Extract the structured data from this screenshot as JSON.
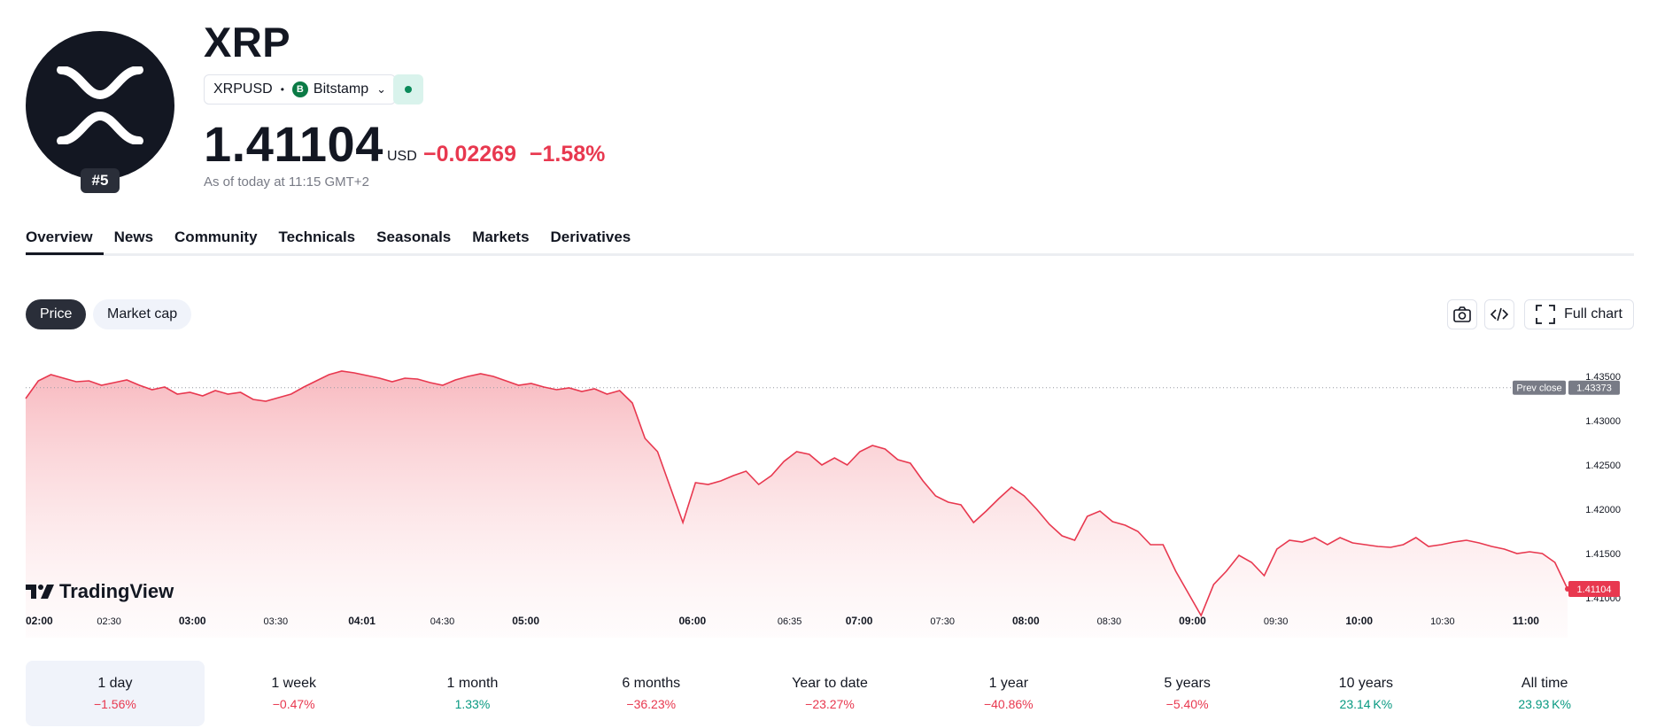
{
  "header": {
    "title": "XRP",
    "rank": "#5",
    "symbol": "XRPUSD",
    "exchange_icon": "B",
    "exchange": "Bitstamp",
    "price": "1.41104",
    "currency": "USD",
    "change": "−0.02269",
    "change_percent": "−1.58%",
    "as_of": "As of today at 11:15 GMT+2"
  },
  "tabs": [
    {
      "label": "Overview"
    },
    {
      "label": "News"
    },
    {
      "label": "Community"
    },
    {
      "label": "Technicals"
    },
    {
      "label": "Seasonals"
    },
    {
      "label": "Markets"
    },
    {
      "label": "Derivatives"
    }
  ],
  "chart_toggle": {
    "price": "Price",
    "market_cap": "Market cap"
  },
  "toolbar": {
    "full_chart": "Full chart"
  },
  "brand": {
    "tradingview": "TradingView"
  },
  "colors": {
    "negative": "#e8384f",
    "positive": "#089981",
    "dark": "#131722"
  },
  "chart_data": {
    "type": "area",
    "x_ticks": [
      "02:00",
      "02:30",
      "03:00",
      "03:30",
      "04:01",
      "04:30",
      "05:00",
      "06:00",
      "06:35",
      "07:00",
      "07:30",
      "08:00",
      "08:30",
      "09:00",
      "09:30",
      "10:00",
      "10:30",
      "11:00"
    ],
    "y_ticks": [
      "1.43500",
      "1.43000",
      "1.42500",
      "1.42000",
      "1.41500",
      "1.41000"
    ],
    "ylim": [
      1.4075,
      1.4375
    ],
    "prev_close_label": "Prev close",
    "prev_close": "1.43373",
    "last_price": "1.41104",
    "series": [
      {
        "values": [
          1.4325,
          1.4345,
          1.4352,
          1.4348,
          1.4344,
          1.4345,
          1.434,
          1.4343,
          1.4346,
          1.434,
          1.4335,
          1.4338,
          1.433,
          1.4332,
          1.4328,
          1.4334,
          1.433,
          1.4332,
          1.4324,
          1.4322,
          1.4326,
          1.433,
          1.4338,
          1.4345,
          1.4352,
          1.4356,
          1.4354,
          1.4351,
          1.4348,
          1.4344,
          1.4348,
          1.4347,
          1.4343,
          1.434,
          1.4346,
          1.435,
          1.4353,
          1.435,
          1.4345,
          1.434,
          1.4342,
          1.4338,
          1.4335,
          1.4337,
          1.4333,
          1.4336,
          1.433,
          1.4334,
          1.432,
          1.428,
          1.4265,
          1.4225,
          1.4185,
          1.423,
          1.4228,
          1.4232,
          1.4238,
          1.4243,
          1.4228,
          1.4238,
          1.4254,
          1.4265,
          1.4262,
          1.425,
          1.4258,
          1.425,
          1.4265,
          1.4272,
          1.4268,
          1.4256,
          1.4252,
          1.4232,
          1.4215,
          1.4208,
          1.4205,
          1.4185,
          1.4198,
          1.4212,
          1.4225,
          1.4215,
          1.42,
          1.4183,
          1.417,
          1.4165,
          1.4192,
          1.4198,
          1.4186,
          1.4182,
          1.4175,
          1.416,
          1.416,
          1.413,
          1.4105,
          1.408,
          1.4115,
          1.413,
          1.4148,
          1.414,
          1.4125,
          1.4155,
          1.4165,
          1.4163,
          1.4168,
          1.416,
          1.4168,
          1.4162,
          1.416,
          1.4158,
          1.4157,
          1.416,
          1.4168,
          1.4158,
          1.416,
          1.4163,
          1.4165,
          1.4162,
          1.4158,
          1.4155,
          1.415,
          1.4152,
          1.415,
          1.414,
          1.411
        ]
      }
    ]
  }
}
